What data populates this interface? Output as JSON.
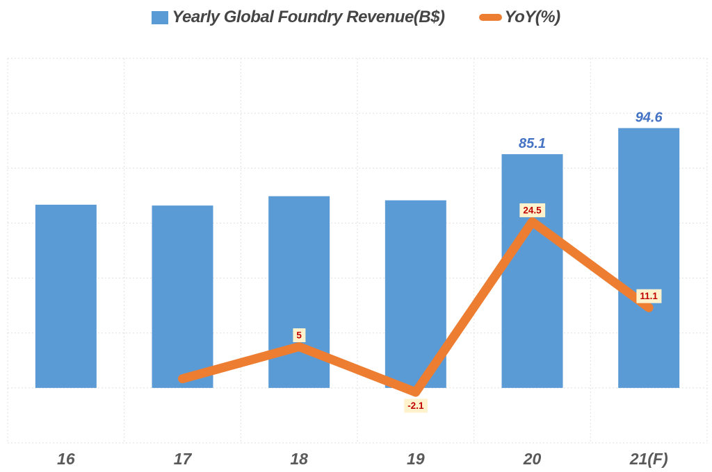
{
  "page": {
    "background": "#FFFFFF"
  },
  "chart_data": {
    "type": "combo_bar_line",
    "title": "",
    "categories": [
      "16",
      "17",
      "18",
      "19",
      "20",
      "21(F)"
    ],
    "series": [
      {
        "name": "Yearly Global Foundry Revenue(B$)",
        "type": "bar",
        "color": "#5B9BD5",
        "values": [
          66.7,
          66.4,
          69.8,
          68.3,
          85.1,
          94.6
        ],
        "data_labels": [
          null,
          null,
          null,
          null,
          "85.1",
          "94.6"
        ],
        "label_color": "#4472C4",
        "axis": {
          "min": -20,
          "max": 120,
          "major_unit": 20,
          "labels_visible": false
        }
      },
      {
        "name": "YoY(%)",
        "type": "line",
        "color": "#ED7D31",
        "values": [
          null,
          0,
          5,
          -2.1,
          24.5,
          11.1
        ],
        "data_labels": [
          null,
          null,
          "5",
          "-2.1",
          "24.5",
          "11.1"
        ],
        "label_positions": [
          null,
          null,
          "above",
          "below",
          "above",
          "above"
        ],
        "label_color": "#C00000",
        "label_bg": "#FFF2CC",
        "axis": {
          "min": -10,
          "max": 50,
          "labels_visible": false
        }
      }
    ],
    "legend_position": "top-center",
    "legend_text_color": "#454545",
    "grid": {
      "horizontal": true,
      "vertical": true,
      "style": "dashed",
      "color": "#DFDFDF",
      "h_divisions": 7
    },
    "x_axis": {
      "tick_label_color": "#595959",
      "tick_labels_visible": true
    },
    "y_axis_tick_labels_visible": false
  }
}
